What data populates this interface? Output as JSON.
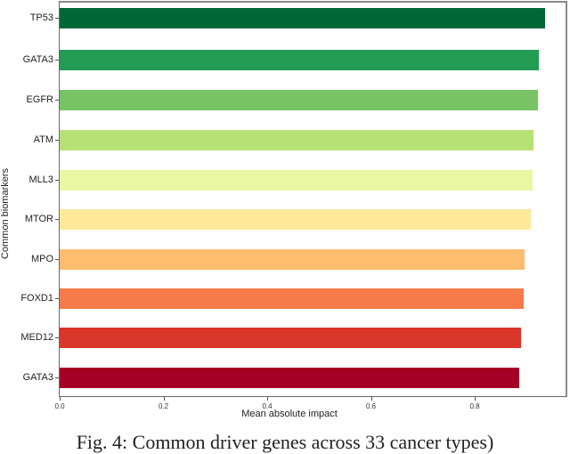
{
  "chart_data": {
    "type": "bar",
    "orientation": "horizontal",
    "title": "",
    "xlabel": "Mean absolute impact",
    "ylabel": "Common biomarkers",
    "xlim": [
      0.0,
      0.98
    ],
    "xticks": [
      "0.0",
      "0.2",
      "0.4",
      "0.6",
      "0.8"
    ],
    "grid": false,
    "legend": null,
    "categories": [
      "TP53",
      "GATA3",
      "EGFR",
      "ATM",
      "MLL3",
      "MTOR",
      "MPO",
      "FOXD1",
      "MED12",
      "GATA3"
    ],
    "values": [
      0.936,
      0.924,
      0.922,
      0.913,
      0.912,
      0.908,
      0.896,
      0.895,
      0.889,
      0.886
    ],
    "colors": [
      "#006837",
      "#239b53",
      "#78c464",
      "#b7e075",
      "#e9f6a2",
      "#fee999",
      "#fdbd6f",
      "#f67b4a",
      "#da362a",
      "#a50026"
    ]
  },
  "caption": "Fig. 4: Common driver genes across 33 cancer types)"
}
